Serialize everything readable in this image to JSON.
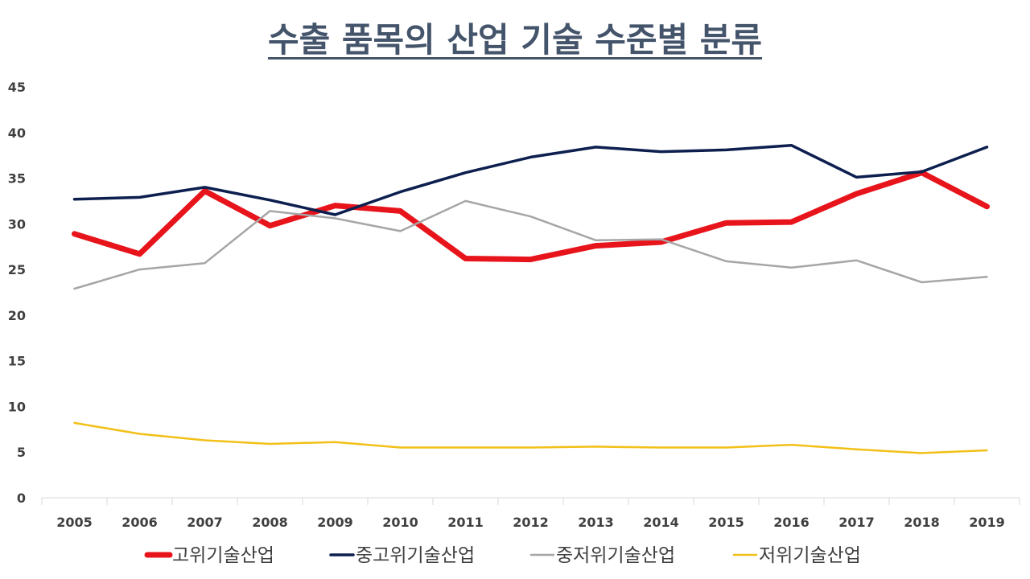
{
  "chart_data": {
    "type": "line",
    "title": "수출 품목의 산업 기술 수준별 분류",
    "xlabel": "",
    "ylabel": "",
    "categories": [
      "2005",
      "2006",
      "2007",
      "2008",
      "2009",
      "2010",
      "2011",
      "2012",
      "2013",
      "2014",
      "2015",
      "2016",
      "2017",
      "2018",
      "2019"
    ],
    "ylim": [
      0,
      45
    ],
    "yticks": [
      0,
      5,
      10,
      15,
      20,
      25,
      30,
      35,
      40,
      45
    ],
    "grid": false,
    "legend_position": "bottom",
    "series": [
      {
        "name": "고위기술산업",
        "color": "#e8141b",
        "values": [
          28.9,
          26.7,
          33.6,
          29.8,
          32.0,
          31.4,
          26.2,
          26.1,
          27.6,
          28.0,
          30.1,
          30.2,
          33.3,
          35.6,
          31.9
        ]
      },
      {
        "name": "중고위기술산업",
        "color": "#0d1f4f",
        "values": [
          32.7,
          32.9,
          34.0,
          32.6,
          31.0,
          33.5,
          35.6,
          37.3,
          38.4,
          37.9,
          38.1,
          38.6,
          35.1,
          35.7,
          38.4
        ]
      },
      {
        "name": "중저위기술산업",
        "color": "#a6a6a6",
        "values": [
          22.9,
          25.0,
          25.7,
          31.4,
          30.6,
          29.2,
          32.5,
          30.8,
          28.2,
          28.3,
          25.9,
          25.2,
          26.0,
          23.6,
          24.2
        ]
      },
      {
        "name": "저위기술산업",
        "color": "#f2c018",
        "values": [
          8.2,
          7.0,
          6.3,
          5.9,
          6.1,
          5.5,
          5.5,
          5.5,
          5.6,
          5.5,
          5.5,
          5.8,
          5.3,
          4.9,
          5.2
        ]
      }
    ]
  }
}
